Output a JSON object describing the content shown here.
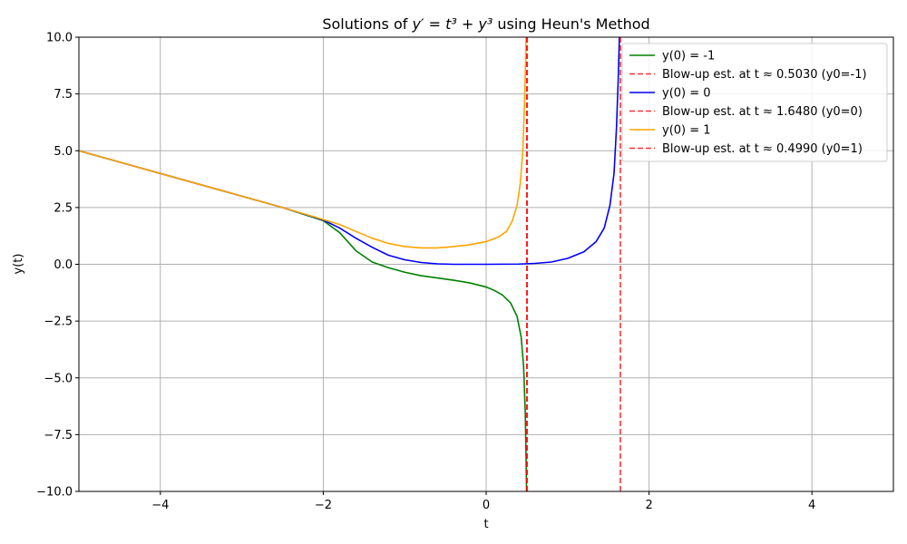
{
  "chart_data": {
    "type": "line",
    "title_prefix": "Solutions of ",
    "title_math": "y′ = t³ + y³",
    "title_suffix": " using Heun's Method",
    "xlabel": "t",
    "ylabel": "y(t)",
    "xlim": [
      -5,
      5
    ],
    "ylim": [
      -10,
      10
    ],
    "xticks": [
      -4,
      -2,
      0,
      2,
      4
    ],
    "yticks": [
      -10.0,
      -7.5,
      -5.0,
      -2.5,
      0.0,
      2.5,
      5.0,
      7.5,
      10.0
    ],
    "xtick_labels": [
      "−4",
      "−2",
      "0",
      "2",
      "4"
    ],
    "ytick_labels": [
      "−10.0",
      "−7.5",
      "−5.0",
      "−2.5",
      "0.0",
      "2.5",
      "5.0",
      "7.5",
      "10.0"
    ],
    "grid": true,
    "legend_position": "upper right",
    "series": [
      {
        "name": "y(0) = -1",
        "color": "#008000",
        "style": "solid",
        "points": [
          [
            -5,
            5
          ],
          [
            -4,
            4
          ],
          [
            -3,
            3
          ],
          [
            -2.5,
            2.5
          ],
          [
            -2,
            1.92
          ],
          [
            -1.8,
            1.4
          ],
          [
            -1.6,
            0.6
          ],
          [
            -1.4,
            0.1
          ],
          [
            -1.2,
            -0.15
          ],
          [
            -1,
            -0.35
          ],
          [
            -0.8,
            -0.5
          ],
          [
            -0.6,
            -0.6
          ],
          [
            -0.4,
            -0.7
          ],
          [
            -0.2,
            -0.82
          ],
          [
            0,
            -1
          ],
          [
            0.1,
            -1.15
          ],
          [
            0.2,
            -1.35
          ],
          [
            0.3,
            -1.7
          ],
          [
            0.38,
            -2.3
          ],
          [
            0.43,
            -3.2
          ],
          [
            0.46,
            -4.5
          ],
          [
            0.48,
            -6.5
          ],
          [
            0.49,
            -8.5
          ],
          [
            0.496,
            -10
          ]
        ]
      },
      {
        "name": "Blow-up est. at t ≈ 0.5030 (y0=-1)",
        "color": "#ff0000",
        "style": "dashed",
        "vline": 0.503
      },
      {
        "name": "y(0) = 0",
        "color": "#0000ff",
        "style": "solid",
        "points": [
          [
            -5,
            5
          ],
          [
            -4,
            4
          ],
          [
            -3,
            3
          ],
          [
            -2.5,
            2.5
          ],
          [
            -2,
            1.95
          ],
          [
            -1.8,
            1.6
          ],
          [
            -1.6,
            1.15
          ],
          [
            -1.4,
            0.75
          ],
          [
            -1.2,
            0.4
          ],
          [
            -1,
            0.2
          ],
          [
            -0.8,
            0.08
          ],
          [
            -0.6,
            0.02
          ],
          [
            -0.4,
            0
          ],
          [
            0,
            0
          ],
          [
            0.4,
            0.01
          ],
          [
            0.6,
            0.04
          ],
          [
            0.8,
            0.1
          ],
          [
            1,
            0.26
          ],
          [
            1.2,
            0.55
          ],
          [
            1.35,
            1.0
          ],
          [
            1.45,
            1.6
          ],
          [
            1.52,
            2.6
          ],
          [
            1.57,
            4
          ],
          [
            1.6,
            6
          ],
          [
            1.62,
            8
          ],
          [
            1.636,
            10
          ]
        ]
      },
      {
        "name": "Blow-up est. at t ≈ 1.6480 (y0=0)",
        "color": "#ff0000",
        "style": "dashed",
        "vline": 1.648
      },
      {
        "name": "y(0) = 1",
        "color": "#ffa500",
        "style": "solid",
        "points": [
          [
            -5,
            5
          ],
          [
            -4,
            4
          ],
          [
            -3,
            3
          ],
          [
            -2.5,
            2.5
          ],
          [
            -2,
            1.97
          ],
          [
            -1.8,
            1.75
          ],
          [
            -1.6,
            1.45
          ],
          [
            -1.4,
            1.15
          ],
          [
            -1.2,
            0.92
          ],
          [
            -1,
            0.78
          ],
          [
            -0.8,
            0.72
          ],
          [
            -0.6,
            0.72
          ],
          [
            -0.4,
            0.78
          ],
          [
            -0.2,
            0.86
          ],
          [
            0,
            1
          ],
          [
            0.15,
            1.2
          ],
          [
            0.25,
            1.45
          ],
          [
            0.32,
            1.9
          ],
          [
            0.38,
            2.6
          ],
          [
            0.42,
            3.6
          ],
          [
            0.45,
            5
          ],
          [
            0.47,
            7
          ],
          [
            0.485,
            9
          ],
          [
            0.49,
            10
          ]
        ]
      },
      {
        "name": "Blow-up est. at t ≈ 0.4990 (y0=1)",
        "color": "#ff0000",
        "style": "dashed",
        "vline": 0.499
      }
    ]
  }
}
